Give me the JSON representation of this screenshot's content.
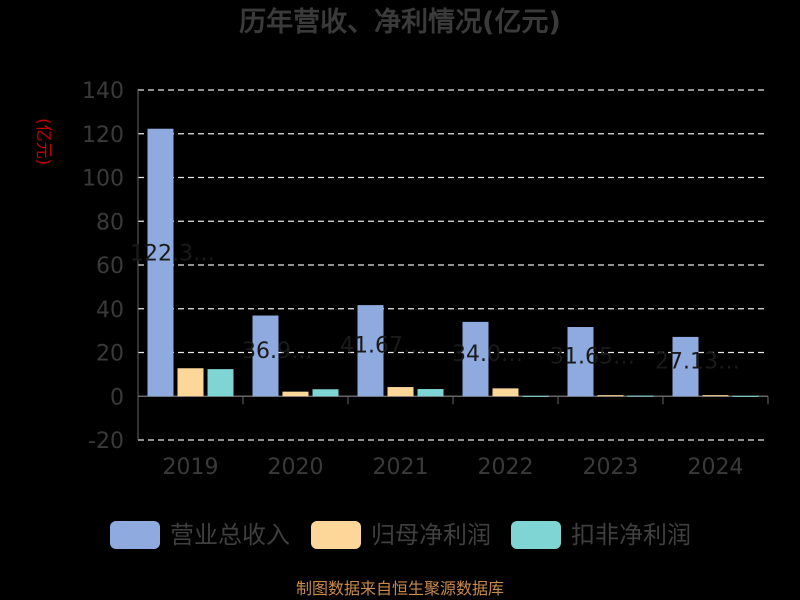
{
  "title": "历年营收、净利情况(亿元)",
  "unit_label": "(亿元)",
  "source": "制图数据来自恒生聚源数据库",
  "colors": {
    "revenue": "#8eaadf",
    "net_profit": "#fdd79a",
    "deducted_profit": "#7fd4d4",
    "grid": "#e6e6e6",
    "axis": "#666666",
    "tick_text": "#3a3a3a",
    "data_label": "#1a1a1a"
  },
  "chart_data": {
    "type": "bar",
    "title": "历年营收、净利情况(亿元)",
    "ylabel": "(亿元)",
    "xlabel": "",
    "ylim": [
      -20,
      140
    ],
    "yticks": [
      -20,
      0,
      20,
      40,
      60,
      80,
      100,
      120,
      140
    ],
    "grid": true,
    "legend_position": "bottom",
    "categories": [
      "2019",
      "2020",
      "2021",
      "2022",
      "2023",
      "2024"
    ],
    "series": [
      {
        "name": "营业总收入",
        "color": "#8eaadf",
        "values": [
          122.3,
          36.9,
          41.67,
          34.0,
          31.65,
          27.13
        ],
        "labels": [
          "122.3…",
          "36.9…",
          "41.67…",
          "34.0…",
          "31.65…",
          "27.13…"
        ]
      },
      {
        "name": "归母净利润",
        "color": "#fdd79a",
        "values": [
          12.8,
          2.1,
          4.2,
          3.6,
          0.5,
          0.5
        ]
      },
      {
        "name": "扣非净利润",
        "color": "#7fd4d4",
        "values": [
          12.4,
          3.2,
          3.3,
          0.2,
          0.3,
          0.2
        ]
      }
    ]
  }
}
